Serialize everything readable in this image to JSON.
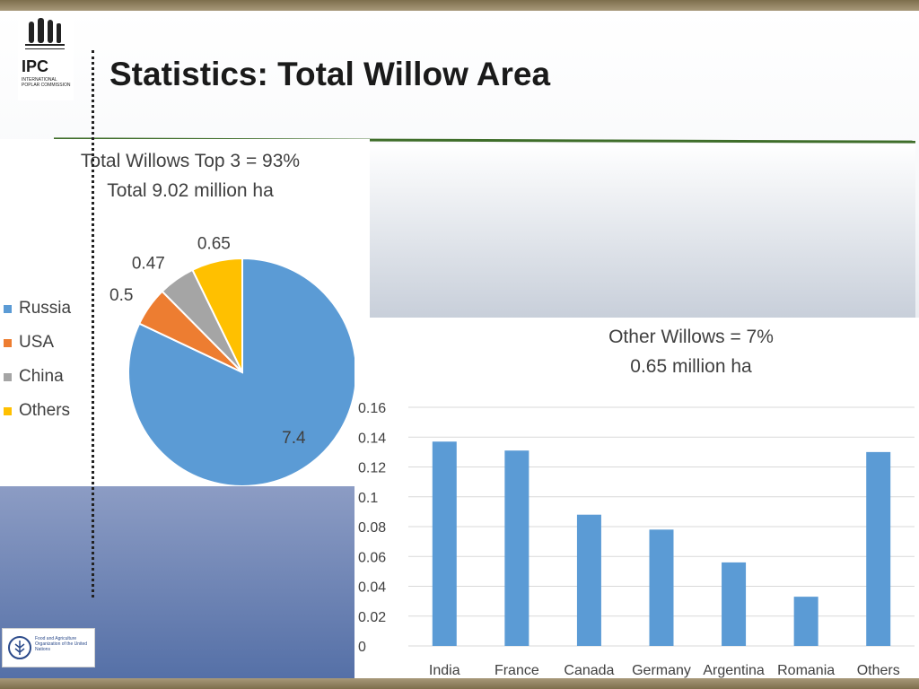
{
  "slide": {
    "title": "Statistics: Total Willow Area",
    "logo_text": "IPC",
    "logo_subtext": "INTERNATIONAL POPLAR COMMISSION",
    "footer_logo_text": "Food and Agriculture Organization of the United Nations"
  },
  "colors": {
    "russia": "#5b9bd5",
    "usa": "#ed7d31",
    "china": "#a5a5a5",
    "others": "#ffc000",
    "bar": "#5b9bd5",
    "green_rule": "#3f6e2a"
  },
  "chart_data": [
    {
      "type": "pie",
      "title": "Total Willows Top 3 = 93%",
      "subtitle": "Total 9.02 million ha",
      "categories": [
        "Russia",
        "USA",
        "China",
        "Others"
      ],
      "values": [
        7.4,
        0.5,
        0.47,
        0.65
      ],
      "value_labels": [
        "7.4",
        "0.5",
        "0.47",
        "0.65"
      ],
      "legend_position": "left"
    },
    {
      "type": "bar",
      "title": "Other Willows = 7%",
      "subtitle": "0.65 million ha",
      "categories": [
        "India",
        "France",
        "Canada",
        "Germany",
        "Argentina",
        "Romania",
        "Others"
      ],
      "values": [
        0.137,
        0.131,
        0.088,
        0.078,
        0.056,
        0.033,
        0.13
      ],
      "ylim": [
        0,
        0.16
      ],
      "yticks": [
        0,
        0.02,
        0.04,
        0.06,
        0.08,
        0.1,
        0.12,
        0.14,
        0.16
      ],
      "ytick_labels": [
        "0",
        "0.02",
        "0.04",
        "0.06",
        "0.08",
        "0.1",
        "0.12",
        "0.14",
        "0.16"
      ],
      "grid": true,
      "xlabel": "",
      "ylabel": ""
    }
  ]
}
